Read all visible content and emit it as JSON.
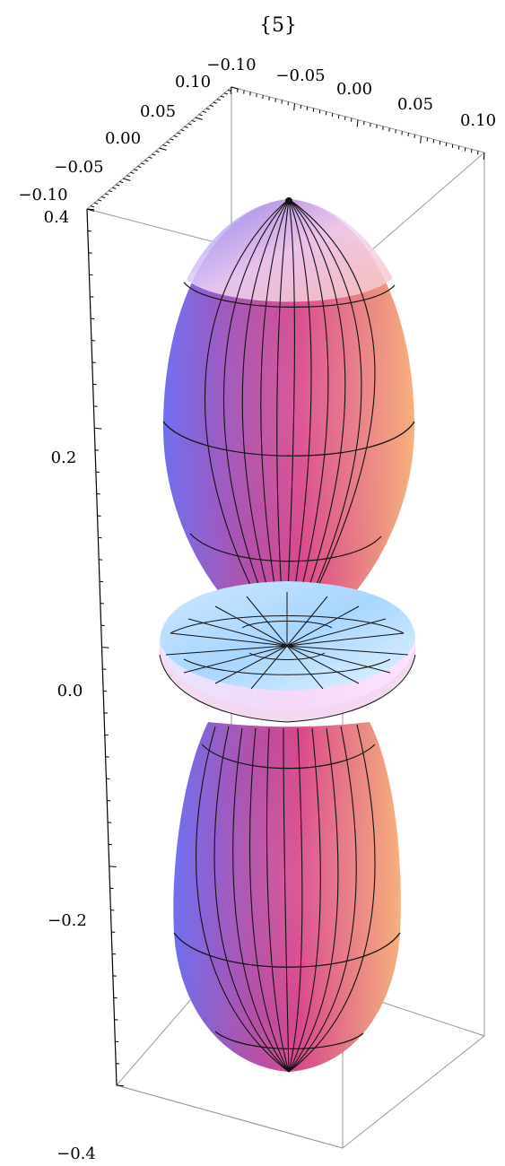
{
  "chart_data": {
    "type": "3d-surface",
    "title": "{5}",
    "axes": {
      "x": {
        "range": [
          -0.1,
          0.1
        ],
        "ticks": [
          -0.1,
          -0.05,
          0.0,
          0.05,
          0.1
        ],
        "tick_labels": [
          "−0.10",
          "−0.05",
          "0.00",
          "0.05",
          "0.10"
        ]
      },
      "y": {
        "range": [
          -0.1,
          0.1
        ],
        "ticks": [
          0.1,
          0.05,
          0.0,
          -0.05,
          -0.1
        ],
        "tick_labels": [
          "0.10",
          "0.05",
          "0.00",
          "−0.05",
          "−0.10"
        ]
      },
      "z": {
        "range": [
          -0.4,
          0.4
        ],
        "ticks": [
          0.4,
          0.2,
          0.0,
          -0.2,
          -0.4
        ],
        "tick_labels": [
          "0.4",
          "0.2",
          "0.0",
          "−0.2",
          "−0.4"
        ]
      }
    },
    "surface": {
      "description": "orbital surface: two elongated lobes along z with a central torus",
      "upper_lobe_z": [
        0.0,
        0.4
      ],
      "lower_lobe_z": [
        -0.4,
        0.0
      ],
      "torus_z": 0.0,
      "colors": {
        "blue": "#6f6ff2",
        "magenta": "#d04590",
        "orange": "#f3a97a",
        "light_blue": "#bfe6ff",
        "highlight": "#ffd6ff"
      }
    },
    "box": true,
    "grid": false
  }
}
